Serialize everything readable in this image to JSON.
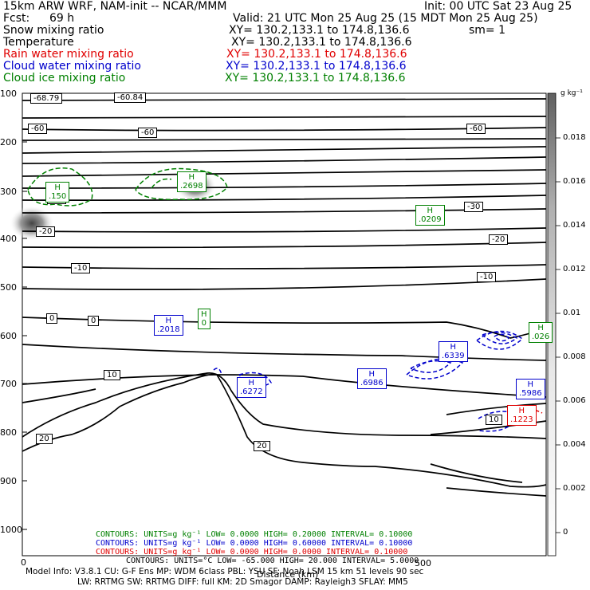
{
  "header": {
    "model": "15km ARW WRF, NAM-init -- NCAR/MMM",
    "init": "Init: 00 UTC Sat 23 Aug 25",
    "fcst_label": "Fcst:",
    "fcst_value": "69 h",
    "valid": "Valid: 21 UTC Mon 25 Aug 25 (15 MDT Mon 25 Aug 25)",
    "fields": [
      {
        "name": "Snow mixing ratio",
        "xy": "XY= 130.2,133.1 to 174.8,136.6",
        "extra": "sm= 1",
        "color": "#000000"
      },
      {
        "name": "Temperature",
        "xy": "XY= 130.2,133.1 to 174.8,136.6",
        "extra": "",
        "color": "#000000"
      },
      {
        "name": "Rain water mixing ratio",
        "xy": "XY= 130.2,133.1 to 174.8,136.6",
        "extra": "",
        "color": "#e00000"
      },
      {
        "name": "Cloud water mixing ratio",
        "xy": "XY= 130.2,133.1 to 174.8,136.6",
        "extra": "",
        "color": "#0000cc"
      },
      {
        "name": "Cloud ice mixing ratio",
        "xy": "XY= 130.2,133.1 to 174.8,136.6",
        "extra": "",
        "color": "#008000"
      }
    ]
  },
  "chart_data": {
    "type": "cross-section contour",
    "xlabel": "Distance (km)",
    "x_ticks": [
      "0",
      "500"
    ],
    "y_ticks": [
      "100",
      "200",
      "300",
      "400",
      "500",
      "600",
      "700",
      "800",
      "900",
      "1000"
    ],
    "colorbar": {
      "unit": "g kg⁻¹",
      "ticks": [
        "0.018",
        "0.016",
        "0.014",
        "0.012",
        "0.01",
        "0.008",
        "0.006",
        "0.004",
        "0.002",
        "0"
      ]
    },
    "temperature_labels": [
      "-68.79",
      "-60.84",
      "-60",
      "-60",
      "-60",
      "-50",
      "-30",
      "-20",
      "-20",
      "-10",
      "-10",
      "0",
      "0",
      "10",
      "10",
      "20",
      "20"
    ],
    "max_labels": [
      {
        "letter": "H",
        "value": ".150",
        "color": "#008000"
      },
      {
        "letter": "H",
        "value": ".2698",
        "color": "#008000"
      },
      {
        "letter": "H",
        "value": ".0209",
        "color": "#008000"
      },
      {
        "letter": "H",
        "value": ".2018",
        "color": "#0000cc"
      },
      {
        "letter": "H",
        "value": "0",
        "color": "#008000"
      },
      {
        "letter": "H",
        "value": ".6272",
        "color": "#0000cc"
      },
      {
        "letter": "H",
        "value": ".6986",
        "color": "#0000cc"
      },
      {
        "letter": "H",
        "value": ".6339",
        "color": "#0000cc"
      },
      {
        "letter": "H",
        "value": ".5986",
        "color": "#0000cc"
      },
      {
        "letter": "H",
        "value": ".026",
        "color": "#008000"
      },
      {
        "letter": "H",
        "value": ".1223",
        "color": "#e00000"
      }
    ],
    "contour_info": [
      {
        "text": "CONTOURS:  UNITS=g kg⁻¹   LOW=  0.0000        HIGH= 0.20000       INTERVAL=  0.10000",
        "color": "#008000"
      },
      {
        "text": "CONTOURS:  UNITS=g kg⁻¹   LOW=  0.0000        HIGH= 0.60000       INTERVAL=  0.10000",
        "color": "#0000cc"
      },
      {
        "text": "CONTOURS:  UNITS=g kg⁻¹   LOW=  0.0000        HIGH=  0.0000       INTERVAL=  0.10000",
        "color": "#e00000"
      },
      {
        "text": "CONTOURS:  UNITS=°C   LOW= -65.000        HIGH=  20.000       INTERVAL=  5.0000",
        "color": "#000000"
      }
    ]
  },
  "footer": {
    "line1": "Model Info: V3.8.1    CU: G-F Ens  MP: WDM 6class  PBL: YSU     SF: Noah LSM     15 km    51 levels    90 sec",
    "line2": "LW: RRTMG    SW: RRTMG   DIFF: full    KM: 2D Smagor DAMP: Rayleigh3   SFLAY: MM5"
  }
}
